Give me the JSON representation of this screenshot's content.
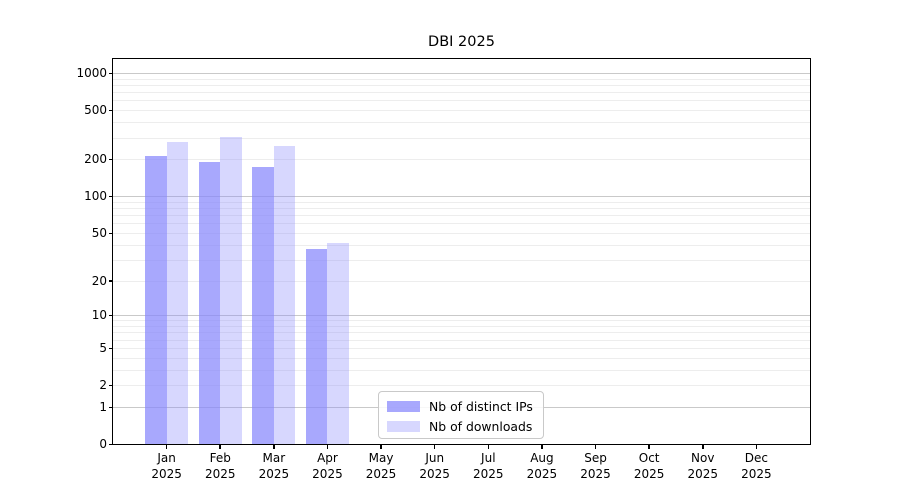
{
  "title": "DBI 2025",
  "chart_data": {
    "type": "bar",
    "title": "DBI 2025",
    "xlabel": "",
    "ylabel": "",
    "y_scale": "symlog-log1p",
    "ylim": [
      0,
      1310
    ],
    "grid": "major-and-minor",
    "legend_position": "lower center",
    "year": "2025",
    "categories": [
      "Jan",
      "Feb",
      "Mar",
      "Apr",
      "May",
      "Jun",
      "Jul",
      "Aug",
      "Sep",
      "Oct",
      "Nov",
      "Dec"
    ],
    "y_ticks": [
      0,
      1,
      2,
      5,
      10,
      20,
      50,
      100,
      200,
      500,
      1000
    ],
    "y_major_gridlines": [
      1,
      10,
      100,
      1000
    ],
    "series": [
      {
        "name": "Nb of distinct IPs",
        "color": "rgba(135,135,252,0.72)",
        "values": [
          215,
          190,
          175,
          37,
          0,
          0,
          0,
          0,
          0,
          0,
          0,
          0
        ]
      },
      {
        "name": "Nb of downloads",
        "color": "rgba(135,135,252,0.33)",
        "values": [
          280,
          305,
          260,
          42,
          0,
          0,
          0,
          0,
          0,
          0,
          0,
          0
        ]
      }
    ]
  },
  "colors": {
    "grid_major": "#c9c9c9",
    "grid_minor": "#ededed",
    "axis": "#000000",
    "background": "#ffffff"
  }
}
